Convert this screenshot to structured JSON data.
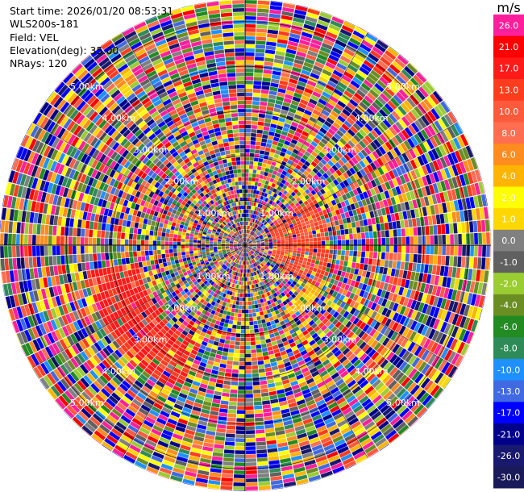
{
  "info": {
    "start_time": "Start time: 2026/01/20 08:53:31",
    "instrument": "WLS200s-181",
    "field": "Field: VEL",
    "elevation": "Elevation(deg): 35.00",
    "nrays": "NRays: 120"
  },
  "chart_data": {
    "type": "heatmap",
    "projection": "polar PPI",
    "field": "VEL",
    "units": "m/s",
    "nrays": 120,
    "range_rings_km": [
      1.0,
      2.0,
      3.0,
      4.0,
      5.0
    ],
    "max_range_km": 5.5,
    "ring_labels": [
      "1.00km",
      "2.00km",
      "3.00km",
      "4.00km",
      "5.00km"
    ],
    "colorbar": {
      "unit_label": "m/s",
      "min": -30.0,
      "max": 30.0,
      "ticks": [
        "26.0",
        "21.0",
        "17.0",
        "13.0",
        "10.0",
        "8.0",
        "6.0",
        "4.0",
        "2.0",
        "1.0",
        "0.0",
        "-1.0",
        "-2.0",
        "-4.0",
        "-6.0",
        "-8.0",
        "-10.0",
        "-13.0",
        "-17.0",
        "-21.0",
        "-26.0",
        "-30.0"
      ],
      "colors": [
        "#ff1f9a",
        "#ff0000",
        "#ff1a1a",
        "#ff3c1e",
        "#ff5a3c",
        "#ff6e50",
        "#ff8c1e",
        "#ffb400",
        "#ffff00",
        "#ffd700",
        "#808080",
        "#606060",
        "#9acd32",
        "#6b8e23",
        "#228b22",
        "#2e8b57",
        "#1e90ff",
        "#4169e1",
        "#0000ff",
        "#00008b",
        "#191970",
        "#1a1a5a"
      ]
    },
    "features": [
      {
        "description": "coherent positive band",
        "azimuth_deg": [
          205,
          260
        ],
        "range_km": [
          2.4,
          3.6
        ],
        "value_ms": 17.0
      },
      {
        "description": "coherent positive band",
        "azimuth_deg": [
          55,
          120
        ],
        "range_km": [
          0.6,
          1.9
        ],
        "value_ms": 13.0
      },
      {
        "description": "coherent near-zero band",
        "azimuth_deg": [
          110,
          150
        ],
        "range_km": [
          1.6,
          2.0
        ],
        "value_ms": 4.0
      }
    ],
    "grid": true
  }
}
